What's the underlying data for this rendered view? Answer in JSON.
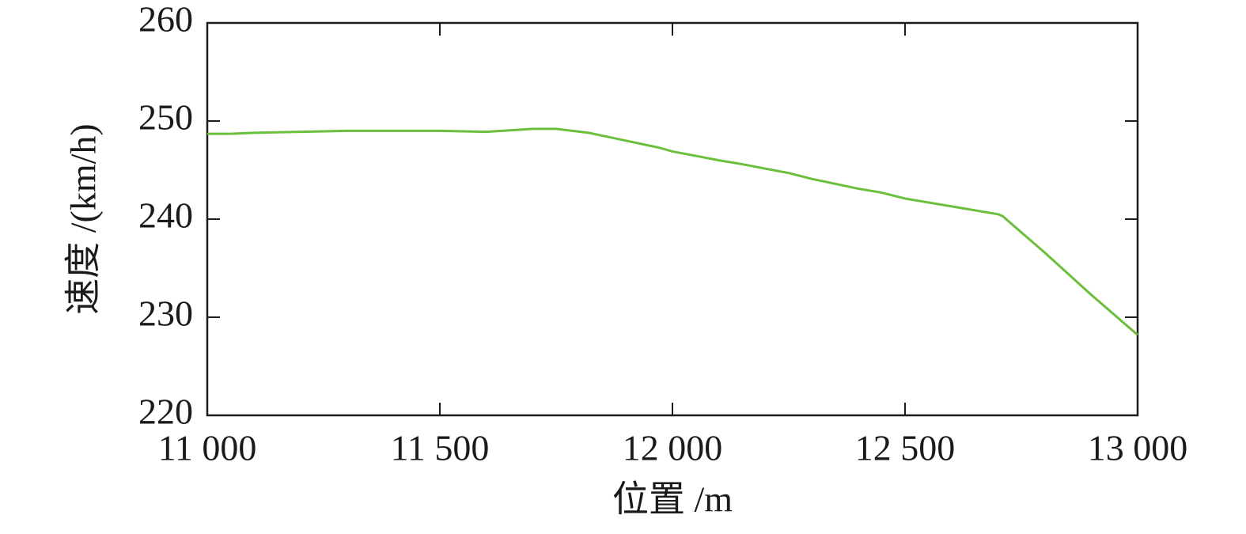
{
  "chart_data": {
    "type": "line",
    "x_label": "位置 /m",
    "y_label": "速度 /(km/h)",
    "x": [
      11000,
      11050,
      11100,
      11200,
      11300,
      11400,
      11500,
      11600,
      11700,
      11750,
      11820,
      11900,
      11970,
      12000,
      12100,
      12150,
      12250,
      12300,
      12400,
      12450,
      12500,
      12600,
      12700,
      12710,
      12800,
      12900,
      13000
    ],
    "series": [
      {
        "name": "速度",
        "color": "#6cbf3c",
        "values": [
          248.7,
          248.7,
          248.8,
          248.9,
          249.0,
          249.0,
          249.0,
          248.9,
          249.2,
          249.2,
          248.8,
          248.0,
          247.3,
          246.9,
          246.0,
          245.6,
          244.7,
          244.1,
          243.1,
          242.7,
          242.1,
          241.3,
          240.5,
          240.3,
          236.6,
          232.3,
          228.2
        ]
      }
    ],
    "xlim": [
      11000,
      13000
    ],
    "xticks": [
      {
        "value": 11000,
        "label": "11 000"
      },
      {
        "value": 11500,
        "label": "11 500"
      },
      {
        "value": 12000,
        "label": "12 000"
      },
      {
        "value": 12500,
        "label": "12 500"
      },
      {
        "value": 13000,
        "label": "13 000"
      }
    ],
    "ylim": [
      220,
      260
    ],
    "yticks": [
      220,
      230,
      240,
      250,
      260
    ],
    "grid": false
  }
}
